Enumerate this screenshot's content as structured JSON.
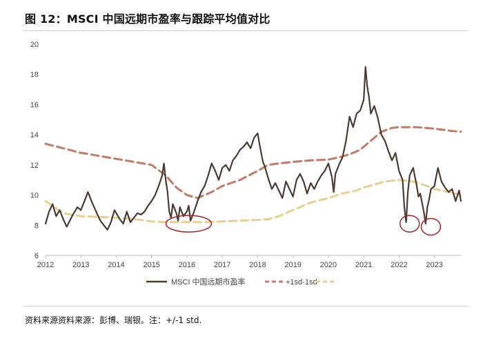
{
  "figure": {
    "title": "图 12：MSCI 中国远期市盈率与跟踪平均值对比",
    "source": "资料来源资料来源：彭博、瑞银。注：+/-1 std."
  },
  "chart_data": {
    "type": "line",
    "title": "",
    "xlabel": "",
    "ylabel": "",
    "xlim": [
      2012.0,
      2023.75
    ],
    "ylim": [
      6,
      20
    ],
    "x_ticks": [
      "2012",
      "2013",
      "2014",
      "2015",
      "2016",
      "2017",
      "2018",
      "2019",
      "2020",
      "2021",
      "2022",
      "2023"
    ],
    "y_ticks": [
      "6",
      "8",
      "10",
      "12",
      "14",
      "16",
      "18",
      "20"
    ],
    "grid": false,
    "legend_position": "bottom",
    "series": [
      {
        "name": "MSCI 中国远期市盈率",
        "color": "#4a3a32",
        "style": "solid",
        "x": [
          2012.0,
          2012.1,
          2012.2,
          2012.3,
          2012.4,
          2012.5,
          2012.6,
          2012.75,
          2012.9,
          2013.0,
          2013.1,
          2013.2,
          2013.3,
          2013.45,
          2013.55,
          2013.65,
          2013.75,
          2013.85,
          2013.95,
          2014.1,
          2014.2,
          2014.3,
          2014.4,
          2014.5,
          2014.6,
          2014.7,
          2014.8,
          2014.9,
          2015.0,
          2015.1,
          2015.2,
          2015.3,
          2015.35,
          2015.4,
          2015.45,
          2015.5,
          2015.55,
          2015.6,
          2015.7,
          2015.75,
          2015.8,
          2015.9,
          2016.0,
          2016.05,
          2016.1,
          2016.2,
          2016.3,
          2016.4,
          2016.5,
          2016.6,
          2016.7,
          2016.8,
          2016.9,
          2017.0,
          2017.1,
          2017.2,
          2017.3,
          2017.4,
          2017.5,
          2017.6,
          2017.7,
          2017.8,
          2017.9,
          2018.0,
          2018.05,
          2018.1,
          2018.15,
          2018.2,
          2018.3,
          2018.4,
          2018.5,
          2018.6,
          2018.7,
          2018.8,
          2018.9,
          2019.0,
          2019.1,
          2019.2,
          2019.3,
          2019.4,
          2019.5,
          2019.6,
          2019.7,
          2019.8,
          2019.9,
          2020.0,
          2020.1,
          2020.15,
          2020.2,
          2020.3,
          2020.4,
          2020.5,
          2020.6,
          2020.7,
          2020.8,
          2020.9,
          2021.0,
          2021.05,
          2021.1,
          2021.15,
          2021.2,
          2021.3,
          2021.4,
          2021.5,
          2021.6,
          2021.7,
          2021.8,
          2021.9,
          2022.0,
          2022.1,
          2022.15,
          2022.2,
          2022.25,
          2022.3,
          2022.4,
          2022.5,
          2022.55,
          2022.6,
          2022.7,
          2022.75,
          2022.8,
          2022.85,
          2022.9,
          2023.0,
          2023.05,
          2023.1,
          2023.2,
          2023.3,
          2023.4,
          2023.5,
          2023.55,
          2023.6,
          2023.7,
          2023.75
        ],
        "values": [
          8.1,
          8.9,
          9.4,
          8.6,
          9.0,
          8.4,
          7.9,
          8.6,
          9.2,
          9.0,
          9.6,
          10.2,
          9.6,
          8.8,
          8.3,
          8.0,
          7.7,
          8.2,
          9.0,
          8.4,
          8.1,
          8.9,
          8.2,
          8.5,
          8.8,
          8.7,
          8.9,
          9.3,
          9.6,
          10.0,
          10.6,
          11.3,
          12.1,
          11.0,
          10.2,
          8.9,
          8.5,
          9.4,
          8.8,
          8.3,
          9.2,
          8.6,
          8.9,
          9.3,
          8.3,
          8.9,
          9.6,
          10.2,
          10.6,
          11.3,
          12.1,
          11.6,
          11.0,
          11.8,
          12.0,
          11.6,
          12.3,
          12.6,
          13.0,
          13.2,
          13.5,
          13.1,
          13.8,
          14.1,
          13.4,
          12.8,
          12.2,
          11.9,
          11.1,
          10.4,
          10.8,
          10.3,
          9.8,
          10.9,
          10.4,
          9.9,
          11.0,
          11.4,
          10.9,
          10.1,
          10.8,
          10.4,
          10.9,
          11.3,
          11.6,
          12.1,
          11.2,
          10.2,
          11.4,
          12.0,
          12.5,
          13.6,
          15.2,
          14.5,
          15.4,
          15.6,
          16.3,
          18.5,
          17.2,
          16.5,
          15.4,
          15.9,
          15.1,
          14.0,
          13.6,
          12.9,
          12.3,
          12.8,
          11.6,
          11.0,
          9.2,
          8.2,
          10.2,
          11.3,
          11.8,
          10.6,
          9.9,
          10.1,
          8.9,
          8.1,
          9.2,
          9.7,
          10.4,
          10.6,
          11.2,
          11.8,
          10.9,
          10.5,
          10.2,
          10.4,
          10.0,
          9.6,
          10.3,
          9.6
        ]
      },
      {
        "name": "+1sd",
        "color": "#c47a66",
        "style": "dashed",
        "x": [
          2012.0,
          2012.5,
          2013.0,
          2013.5,
          2014.0,
          2014.5,
          2015.0,
          2015.4,
          2015.7,
          2016.0,
          2016.3,
          2016.7,
          2017.0,
          2017.5,
          2018.0,
          2018.3,
          2018.6,
          2019.0,
          2019.5,
          2020.0,
          2020.3,
          2020.6,
          2020.9,
          2021.2,
          2021.5,
          2021.8,
          2022.0,
          2022.5,
          2023.0,
          2023.5,
          2023.75
        ],
        "values": [
          13.4,
          13.1,
          12.8,
          12.6,
          12.4,
          12.2,
          12.0,
          11.3,
          10.5,
          10.0,
          9.8,
          10.2,
          10.6,
          11.0,
          11.6,
          12.0,
          12.1,
          12.2,
          12.3,
          12.35,
          12.5,
          12.7,
          13.0,
          13.6,
          14.2,
          14.45,
          14.5,
          14.5,
          14.4,
          14.25,
          14.2
        ]
      },
      {
        "name": "-1sd",
        "color": "#e8cf8e",
        "style": "dashed",
        "x": [
          2012.0,
          2012.5,
          2013.0,
          2013.5,
          2014.0,
          2014.5,
          2015.0,
          2015.5,
          2016.0,
          2016.5,
          2017.0,
          2017.5,
          2018.0,
          2018.3,
          2018.6,
          2019.0,
          2019.5,
          2020.0,
          2020.4,
          2020.8,
          2021.0,
          2021.3,
          2021.6,
          2022.0,
          2022.4,
          2022.8,
          2023.0,
          2023.4,
          2023.75
        ],
        "values": [
          9.6,
          8.8,
          8.6,
          8.55,
          8.5,
          8.4,
          8.25,
          8.2,
          8.2,
          8.2,
          8.25,
          8.3,
          8.35,
          8.4,
          8.6,
          9.0,
          9.5,
          9.8,
          10.1,
          10.3,
          10.5,
          10.7,
          10.9,
          11.0,
          10.9,
          10.6,
          10.4,
          10.2,
          10.0
        ]
      }
    ],
    "annotations": [
      {
        "type": "circle",
        "x": 2016.05,
        "y": 8.1
      },
      {
        "type": "circle",
        "x": 2022.3,
        "y": 8.1
      },
      {
        "type": "circle",
        "x": 2022.9,
        "y": 7.9
      }
    ]
  }
}
